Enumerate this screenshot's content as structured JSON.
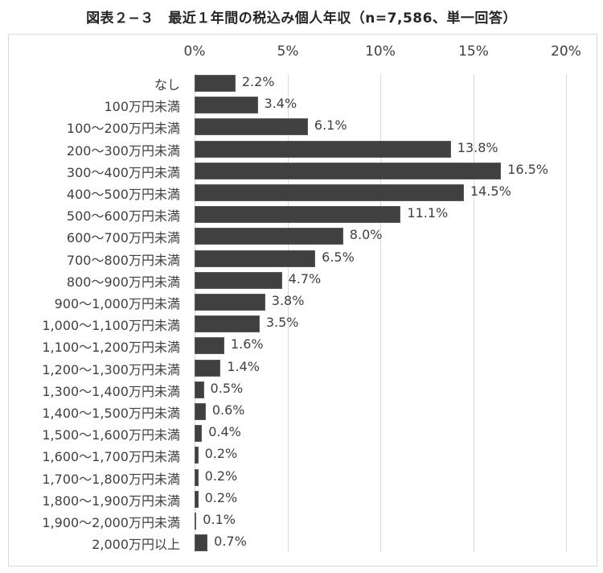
{
  "chart_data": {
    "type": "bar",
    "orientation": "horizontal",
    "title": "図表２−３　最近１年間の税込み個人年収（n=7,586、単一回答）",
    "xlabel": "",
    "ylabel": "",
    "xlim": [
      0,
      20
    ],
    "x_ticks": [
      "0%",
      "5%",
      "10%",
      "15%",
      "20%"
    ],
    "grid": true,
    "legend": null,
    "bar_color": "#404040",
    "categories": [
      "なし",
      "100万円未満",
      "100～200万円未満",
      "200～300万円未満",
      "300～400万円未満",
      "400～500万円未満",
      "500～600万円未満",
      "600～700万円未満",
      "700～800万円未満",
      "800～900万円未満",
      "900～1,000万円未満",
      "1,000～1,100万円未満",
      "1,100～1,200万円未満",
      "1,200～1,300万円未満",
      "1,300～1,400万円未満",
      "1,400～1,500万円未満",
      "1,500～1,600万円未満",
      "1,600～1,700万円未満",
      "1,700～1,800万円未満",
      "1,800～1,900万円未満",
      "1,900～2,000万円未満",
      "2,000万円以上"
    ],
    "values": [
      2.2,
      3.4,
      6.1,
      13.8,
      16.5,
      14.5,
      11.1,
      8.0,
      6.5,
      4.7,
      3.8,
      3.5,
      1.6,
      1.4,
      0.5,
      0.6,
      0.4,
      0.2,
      0.2,
      0.2,
      0.1,
      0.7
    ],
    "value_labels": [
      "2.2%",
      "3.4%",
      "6.1%",
      "13.8%",
      "16.5%",
      "14.5%",
      "11.1%",
      "8.0%",
      "6.5%",
      "4.7%",
      "3.8%",
      "3.5%",
      "1.6%",
      "1.4%",
      "0.5%",
      "0.6%",
      "0.4%",
      "0.2%",
      "0.2%",
      "0.2%",
      "0.1%",
      "0.7%"
    ]
  }
}
